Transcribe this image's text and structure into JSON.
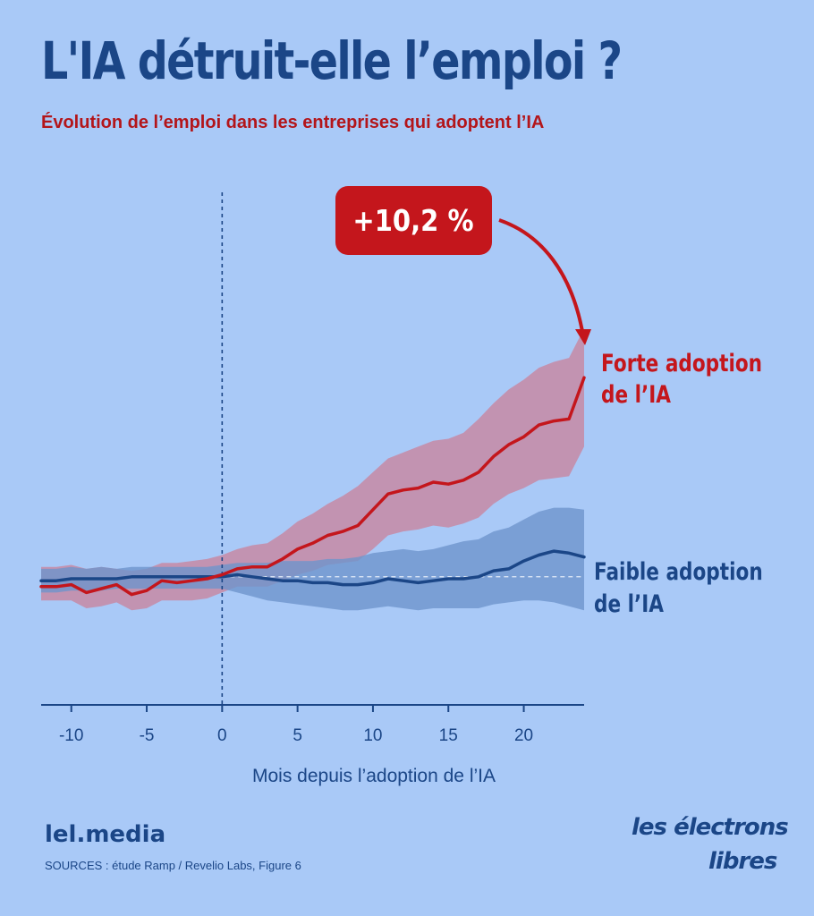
{
  "header": {
    "title": "L'IA détruit-elle l’emploi ?",
    "subtitle": "Évolution de l’emploi dans les entreprises qui adoptent l’IA"
  },
  "footer": {
    "brand": "lel.media",
    "sources": "SOURCES : étude Ramp / Revelio Labs, Figure 6",
    "logo_line1": "les électrons",
    "logo_line2": "libres"
  },
  "colors": {
    "background": "#a9c9f7",
    "high_series": "#c4161c",
    "high_band": "#c78aa4",
    "low_series": "#1b4687",
    "low_band": "#6e95cc",
    "axis": "#1b4687"
  },
  "chart_data": {
    "type": "line",
    "xlabel": "Mois depuis l’adoption de l’IA",
    "ylabel": "",
    "xlim": [
      -12,
      24
    ],
    "ylim": [
      -0.065,
      0.195
    ],
    "x_ticks": [
      -10,
      -5,
      0,
      5,
      10,
      15,
      20
    ],
    "x_tick_labels": [
      "-10",
      "-5",
      "0",
      "5",
      "10",
      "15",
      "20"
    ],
    "reference_vline": 0,
    "reference_hline": 0,
    "grid": false,
    "legend": "direct labels at right",
    "callout": "+10,2 %",
    "x": [
      -12,
      -11,
      -10,
      -9,
      -8,
      -7,
      -6,
      -5,
      -4,
      -3,
      -2,
      -1,
      0,
      1,
      2,
      3,
      4,
      5,
      6,
      7,
      8,
      9,
      10,
      11,
      12,
      13,
      14,
      15,
      16,
      17,
      18,
      19,
      20,
      21,
      22,
      23,
      24
    ],
    "series": [
      {
        "name": "Forte adoption de l’IA",
        "values": [
          -0.005,
          -0.005,
          -0.004,
          -0.008,
          -0.006,
          -0.004,
          -0.009,
          -0.007,
          -0.002,
          -0.003,
          -0.002,
          -0.001,
          0.001,
          0.004,
          0.005,
          0.005,
          0.009,
          0.014,
          0.017,
          0.021,
          0.023,
          0.026,
          0.034,
          0.042,
          0.044,
          0.045,
          0.048,
          0.047,
          0.049,
          0.053,
          0.061,
          0.067,
          0.071,
          0.077,
          0.079,
          0.08,
          0.101
        ],
        "band_upper": [
          0.005,
          0.005,
          0.006,
          0.004,
          0.005,
          0.004,
          0.003,
          0.004,
          0.007,
          0.007,
          0.008,
          0.009,
          0.011,
          0.014,
          0.016,
          0.017,
          0.022,
          0.028,
          0.032,
          0.037,
          0.041,
          0.046,
          0.053,
          0.06,
          0.063,
          0.066,
          0.069,
          0.07,
          0.073,
          0.08,
          0.088,
          0.095,
          0.1,
          0.106,
          0.109,
          0.111,
          0.126
        ],
        "band_lower": [
          -0.012,
          -0.012,
          -0.012,
          -0.016,
          -0.015,
          -0.013,
          -0.017,
          -0.016,
          -0.012,
          -0.012,
          -0.012,
          -0.011,
          -0.008,
          -0.005,
          -0.005,
          -0.005,
          -0.002,
          0.001,
          0.003,
          0.006,
          0.007,
          0.008,
          0.014,
          0.021,
          0.023,
          0.024,
          0.026,
          0.025,
          0.027,
          0.03,
          0.037,
          0.042,
          0.045,
          0.049,
          0.05,
          0.051,
          0.066
        ]
      },
      {
        "name": "Faible adoption de l’IA",
        "values": [
          -0.002,
          -0.002,
          -0.001,
          -0.001,
          -0.001,
          -0.001,
          0.0,
          0.0,
          0.0,
          0.0,
          0.0,
          0.0,
          0.0,
          0.001,
          0.0,
          -0.001,
          -0.002,
          -0.002,
          -0.003,
          -0.003,
          -0.004,
          -0.004,
          -0.003,
          -0.001,
          -0.002,
          -0.003,
          -0.002,
          -0.001,
          -0.001,
          0.0,
          0.003,
          0.004,
          0.008,
          0.011,
          0.013,
          0.012,
          0.01
        ],
        "band_upper": [
          0.004,
          0.004,
          0.005,
          0.004,
          0.005,
          0.004,
          0.005,
          0.005,
          0.005,
          0.005,
          0.005,
          0.005,
          0.006,
          0.007,
          0.007,
          0.007,
          0.008,
          0.008,
          0.008,
          0.009,
          0.009,
          0.01,
          0.012,
          0.013,
          0.014,
          0.013,
          0.014,
          0.016,
          0.018,
          0.019,
          0.023,
          0.025,
          0.029,
          0.033,
          0.035,
          0.035,
          0.034
        ],
        "band_lower": [
          -0.008,
          -0.008,
          -0.007,
          -0.007,
          -0.007,
          -0.006,
          -0.006,
          -0.006,
          -0.006,
          -0.006,
          -0.006,
          -0.006,
          -0.006,
          -0.008,
          -0.01,
          -0.012,
          -0.013,
          -0.014,
          -0.015,
          -0.016,
          -0.017,
          -0.017,
          -0.016,
          -0.015,
          -0.016,
          -0.017,
          -0.016,
          -0.016,
          -0.016,
          -0.016,
          -0.014,
          -0.013,
          -0.012,
          -0.012,
          -0.013,
          -0.015,
          -0.017
        ]
      }
    ]
  }
}
